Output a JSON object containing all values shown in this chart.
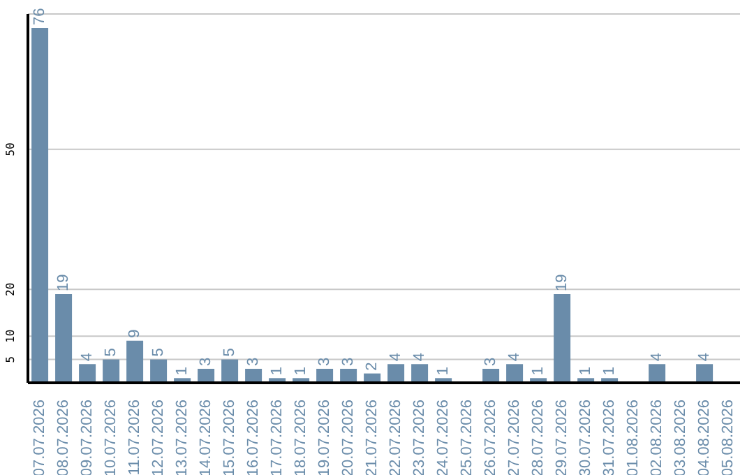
{
  "chart_data": {
    "type": "bar",
    "categories": [
      "07.07.2026",
      "08.07.2026",
      "09.07.2026",
      "10.07.2026",
      "11.07.2026",
      "12.07.2026",
      "13.07.2026",
      "14.07.2026",
      "15.07.2026",
      "16.07.2026",
      "17.07.2026",
      "18.07.2026",
      "19.07.2026",
      "20.07.2026",
      "21.07.2026",
      "22.07.2026",
      "23.07.2026",
      "24.07.2026",
      "25.07.2026",
      "26.07.2026",
      "27.07.2026",
      "28.07.2026",
      "29.07.2026",
      "30.07.2026",
      "31.07.2026",
      "01.08.2026",
      "02.08.2026",
      "03.08.2026",
      "04.08.2026",
      "05.08.2026"
    ],
    "values": [
      76,
      19,
      4,
      5,
      9,
      5,
      1,
      3,
      5,
      3,
      1,
      1,
      3,
      3,
      2,
      4,
      4,
      1,
      null,
      3,
      4,
      1,
      19,
      1,
      1,
      null,
      4,
      null,
      4,
      null
    ],
    "color": "#6a8caa",
    "ylim": [
      0,
      79
    ],
    "yticks": [
      5,
      10,
      20,
      50
    ],
    "grid": "y",
    "data_labels": true,
    "legend": false
  }
}
